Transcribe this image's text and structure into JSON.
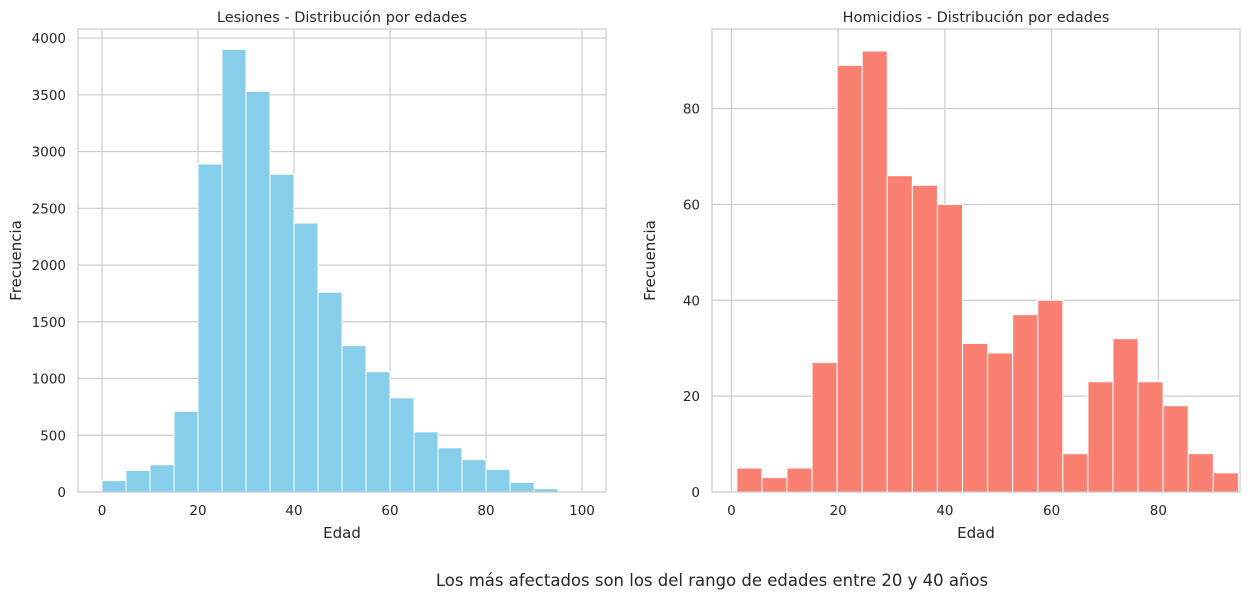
{
  "caption": "Los más afectados son los del rango de edades entre 20 y 40 años",
  "chart_data": [
    {
      "type": "bar",
      "title": "Lesiones - Distribución por edades",
      "xlabel": "Edad",
      "ylabel": "Frecuencia",
      "color": "#87ceeb",
      "grid": true,
      "xlim": [
        -5,
        105
      ],
      "ylim": [
        0,
        4080
      ],
      "xticks": [
        0,
        20,
        40,
        60,
        80,
        100
      ],
      "xtick_labels": [
        "0",
        "20",
        "40",
        "60",
        "80",
        "100"
      ],
      "yticks": [
        0,
        500,
        1000,
        1500,
        2000,
        2500,
        3000,
        3500,
        4000
      ],
      "ytick_labels": [
        "0",
        "500",
        "1000",
        "1500",
        "2000",
        "2500",
        "3000",
        "3500",
        "4000"
      ],
      "bin_edges": [
        0,
        5,
        10,
        15,
        20,
        25,
        30,
        35,
        40,
        45,
        50,
        55,
        60,
        65,
        70,
        75,
        80,
        85,
        90,
        95,
        100
      ],
      "values": [
        100,
        190,
        240,
        710,
        2890,
        3900,
        3530,
        2800,
        2370,
        1760,
        1290,
        1060,
        830,
        530,
        390,
        285,
        200,
        85,
        30,
        5
      ]
    },
    {
      "type": "bar",
      "title": "Homicidios - Distribución por edades",
      "xlabel": "Edad",
      "ylabel": "Frecuencia",
      "color": "#fa8072",
      "grid": true,
      "xlim": [
        -3.65,
        95.3
      ],
      "ylim": [
        0,
        96.6
      ],
      "xticks": [
        0,
        20,
        40,
        60,
        80
      ],
      "xtick_labels": [
        "0",
        "20",
        "40",
        "60",
        "80"
      ],
      "yticks": [
        0,
        20,
        40,
        60,
        80
      ],
      "ytick_labels": [
        "0",
        "20",
        "40",
        "60",
        "80"
      ],
      "bin_edges": [
        1,
        5.7,
        10.4,
        15.1,
        19.8,
        24.5,
        29.2,
        33.9,
        38.6,
        43.3,
        48,
        52.7,
        57.4,
        62.1,
        66.8,
        71.5,
        76.2,
        80.9,
        85.6,
        90.3,
        95
      ],
      "values": [
        5,
        3,
        5,
        27,
        89,
        92,
        66,
        64,
        60,
        31,
        29,
        37,
        40,
        8,
        23,
        32,
        23,
        18,
        8,
        4
      ]
    }
  ]
}
